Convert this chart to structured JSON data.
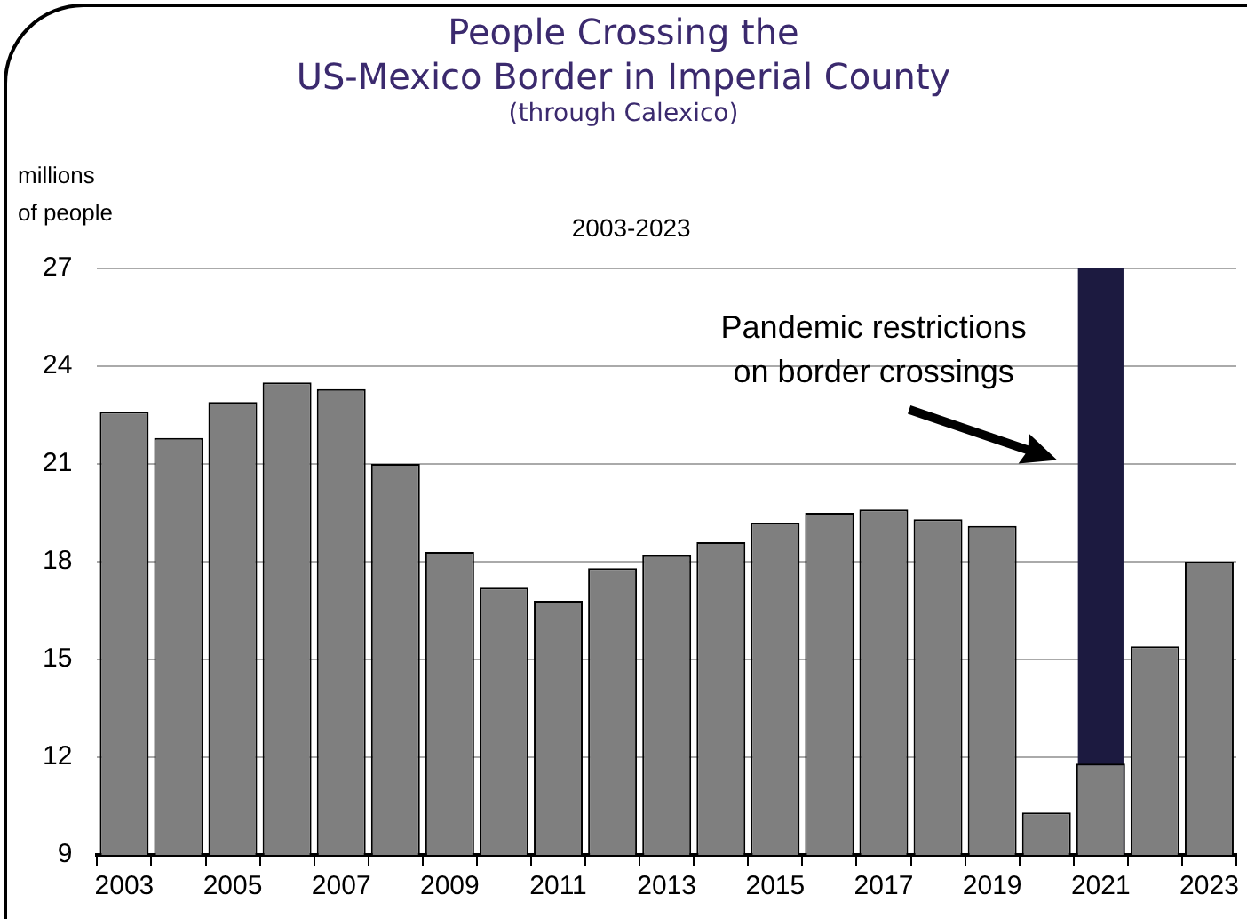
{
  "chart_data": {
    "type": "bar",
    "title": "People Crossing the\nUS-Mexico Border in Imperial County",
    "subtitle": "(through Calexico)",
    "ylabel": "millions\nof people",
    "annotations": [
      "2003-2023"
    ],
    "categories": [
      "2003",
      null,
      "2005",
      null,
      "2007",
      null,
      "2009",
      null,
      "2011",
      null,
      "2013",
      null,
      "2015",
      null,
      "2017",
      null,
      "2019",
      null,
      "2021",
      null,
      "2023"
    ],
    "values": [
      22.6,
      21.8,
      22.9,
      23.5,
      23.3,
      21.0,
      18.3,
      17.2,
      16.8,
      17.8,
      18.2,
      18.6,
      19.2,
      19.5,
      19.6,
      19.3,
      19.1,
      10.3,
      11.8,
      15.4,
      18.0
    ],
    "color": "#7f7f7f",
    "bands": [
      {
        "axis": "x",
        "from": "2021",
        "to": "2021",
        "label": "Pandemic restrictions\non border crossings",
        "color": "#1c1a40"
      }
    ],
    "ylim": [
      9,
      27
    ],
    "yticks": [
      9,
      12,
      15,
      18,
      21,
      24,
      27
    ],
    "grid": "y",
    "legend": false
  }
}
